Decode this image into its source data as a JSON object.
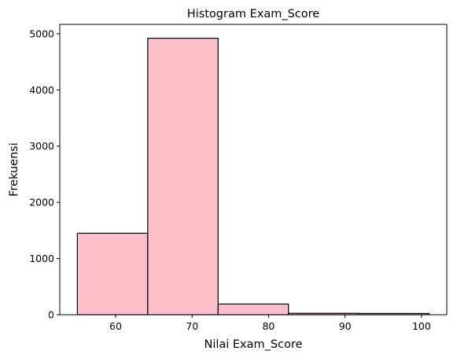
{
  "chart_data": {
    "type": "bar",
    "title": "Histogram Exam_Score",
    "xlabel": "Nilai Exam_Score",
    "ylabel": "Frekuensi",
    "bins": [
      {
        "x0": 55.0,
        "x1": 64.2,
        "count": 1450
      },
      {
        "x0": 64.2,
        "x1": 73.4,
        "count": 4920
      },
      {
        "x0": 73.4,
        "x1": 82.6,
        "count": 190
      },
      {
        "x0": 82.6,
        "x1": 91.8,
        "count": 25
      },
      {
        "x0": 91.8,
        "x1": 101.0,
        "count": 22
      }
    ],
    "xticks": [
      60,
      70,
      80,
      90,
      100
    ],
    "yticks": [
      0,
      1000,
      2000,
      3000,
      4000,
      5000
    ],
    "xlim": [
      52.7,
      103.3
    ],
    "ylim": [
      0,
      5166
    ],
    "grid": false,
    "colors": {
      "bar_fill": "#ffc0cb",
      "bar_edge": "#000000"
    }
  }
}
